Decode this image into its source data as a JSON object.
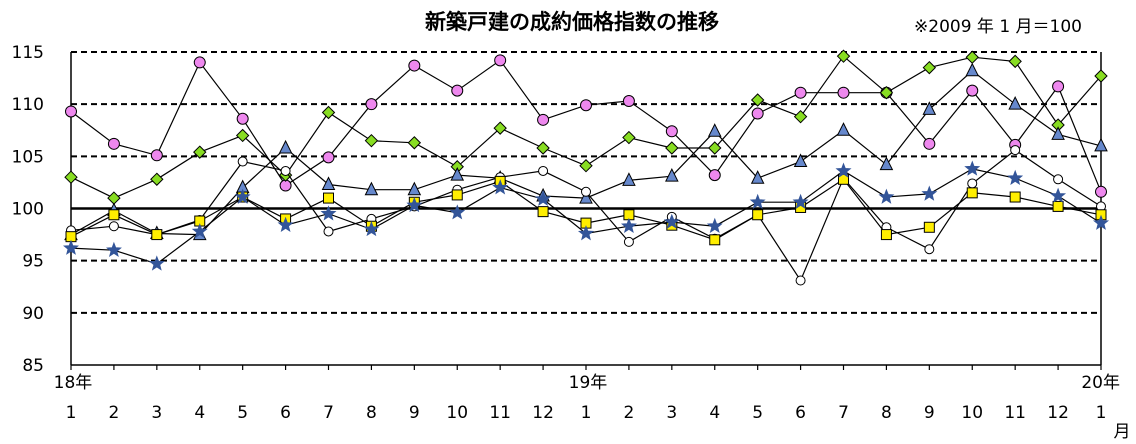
{
  "chart_data": {
    "type": "line",
    "title": "新築戸建の成約価格指数の推移",
    "note": "※2009 年 1 月＝100",
    "xlabel": "",
    "ylabel": "",
    "ylim": [
      85,
      115
    ],
    "yticks": [
      "85",
      "90",
      "95",
      "100",
      "105",
      "110",
      "115"
    ],
    "grid": true,
    "legend": "none",
    "categories": [
      "1",
      "2",
      "3",
      "4",
      "5",
      "6",
      "7",
      "8",
      "9",
      "10",
      "11",
      "12",
      "1",
      "2",
      "3",
      "4",
      "5",
      "6",
      "7",
      "8",
      "9",
      "10",
      "11",
      "12",
      "1"
    ],
    "year_labels": [
      {
        "index": 0,
        "label": "18年"
      },
      {
        "index": 12,
        "label": "19年"
      },
      {
        "index": 24,
        "label": "20年"
      }
    ],
    "month_unit": "月",
    "series": [
      {
        "marker": "circle",
        "color": "#ee88ee",
        "values": [
          109.3,
          106.2,
          105.1,
          114.0,
          108.6,
          102.2,
          104.9,
          110.0,
          113.7,
          111.3,
          114.2,
          108.5,
          109.9,
          110.3,
          107.4,
          103.2,
          109.1,
          111.1,
          111.1,
          111.1,
          106.2,
          111.3,
          106.1,
          111.7,
          101.6
        ]
      },
      {
        "marker": "diamond",
        "color": "#88dd22",
        "values": [
          103.0,
          101.0,
          102.8,
          105.4,
          107.0,
          103.2,
          109.2,
          106.5,
          106.3,
          104.0,
          107.7,
          105.8,
          104.1,
          106.8,
          105.8,
          105.8,
          110.4,
          108.8,
          114.6,
          111.1,
          113.5,
          114.5,
          114.1,
          108.0,
          112.7
        ]
      },
      {
        "marker": "triangle",
        "color": "#6688cc",
        "values": [
          97.5,
          99.8,
          97.6,
          97.5,
          102.0,
          105.8,
          102.3,
          101.8,
          101.8,
          103.2,
          102.9,
          101.2,
          101.0,
          102.7,
          103.1,
          107.4,
          102.9,
          104.5,
          107.5,
          104.2,
          109.5,
          113.2,
          110.0,
          107.1,
          106.0
        ]
      },
      {
        "marker": "circle-open",
        "color": "#000000",
        "values": [
          97.9,
          98.3,
          97.5,
          98.9,
          104.5,
          103.6,
          97.8,
          99.0,
          100.2,
          101.8,
          103.0,
          103.6,
          101.6,
          96.8,
          99.2,
          97.1,
          99.4,
          93.1,
          102.9,
          98.2,
          96.1,
          102.4,
          105.6,
          102.8,
          100.2
        ]
      },
      {
        "marker": "square",
        "color": "#ffee00",
        "values": [
          97.3,
          99.4,
          97.5,
          98.8,
          101.1,
          99.0,
          101.0,
          98.3,
          100.6,
          101.3,
          102.6,
          99.7,
          98.6,
          99.4,
          98.4,
          97.0,
          99.4,
          100.1,
          102.8,
          97.5,
          98.2,
          101.5,
          101.1,
          100.2,
          99.4
        ]
      },
      {
        "marker": "star",
        "color": "#335599",
        "values": [
          96.2,
          96.0,
          94.7,
          97.8,
          101.1,
          98.4,
          99.5,
          98.0,
          100.3,
          99.6,
          102.0,
          100.9,
          97.6,
          98.3,
          98.7,
          98.3,
          100.6,
          100.6,
          103.6,
          101.1,
          101.4,
          103.8,
          102.9,
          101.2,
          98.6
        ]
      }
    ]
  }
}
